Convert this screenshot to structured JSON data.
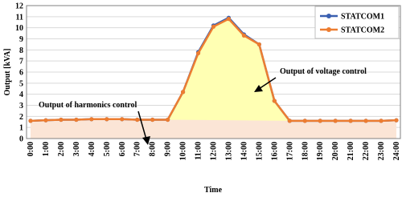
{
  "chart_data": {
    "type": "line",
    "xlabel": "Time",
    "ylabel": "Output [kVA]",
    "categories": [
      "0:00",
      "1:00",
      "2:00",
      "3:00",
      "4:00",
      "5:00",
      "6:00",
      "7:00",
      "8:00",
      "9:00",
      "10:00",
      "11:00",
      "12:00",
      "13:00",
      "14:00",
      "15:00",
      "16:00",
      "17:00",
      "18:00",
      "19:00",
      "20:00",
      "21:00",
      "22:00",
      "23:00",
      "24:00"
    ],
    "series": [
      {
        "name": "STATCOM1",
        "color": "#3a5fb0",
        "values": [
          1.6,
          1.65,
          1.7,
          1.7,
          1.75,
          1.75,
          1.75,
          1.7,
          1.7,
          1.7,
          4.2,
          7.8,
          10.2,
          10.9,
          9.4,
          8.5,
          3.4,
          1.6,
          1.6,
          1.6,
          1.6,
          1.6,
          1.6,
          1.6,
          1.65
        ]
      },
      {
        "name": "STATCOM2",
        "color": "#ed7d31",
        "values": [
          1.6,
          1.65,
          1.7,
          1.7,
          1.75,
          1.75,
          1.75,
          1.7,
          1.7,
          1.7,
          4.2,
          7.7,
          10.1,
          10.8,
          9.3,
          8.5,
          3.4,
          1.6,
          1.6,
          1.6,
          1.6,
          1.6,
          1.6,
          1.6,
          1.65
        ]
      }
    ],
    "ylim": [
      0,
      12
    ],
    "yticks": [
      0,
      1,
      2,
      3,
      4,
      5,
      6,
      7,
      8,
      9,
      10,
      11,
      12
    ],
    "grid": true,
    "legend": "upper right",
    "annotations": [
      "Output of voltage control",
      "Output of harmonics control"
    ]
  }
}
